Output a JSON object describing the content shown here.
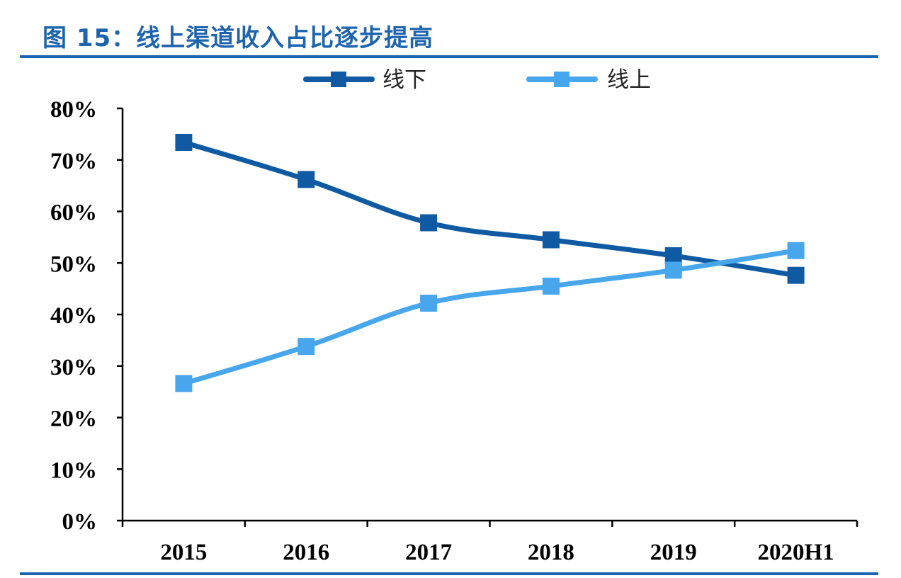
{
  "figure": {
    "title": "图 15：线上渠道收入占比逐步提高"
  },
  "colors": {
    "title": "#1d63ad",
    "rule": "#1d63ad",
    "axis": "#000000"
  },
  "chart_data": {
    "type": "line",
    "title": "",
    "xlabel": "",
    "ylabel": "",
    "categories": [
      "2015",
      "2016",
      "2017",
      "2018",
      "2019",
      "2020H1"
    ],
    "ylim": [
      0,
      80
    ],
    "yticks": [
      0,
      10,
      20,
      30,
      40,
      50,
      60,
      70,
      80
    ],
    "ytick_labels": [
      "0%",
      "10%",
      "20%",
      "30%",
      "40%",
      "50%",
      "60%",
      "70%",
      "80%"
    ],
    "y_unit": "%",
    "grid": false,
    "legend_position": "top",
    "marker": "square",
    "series": [
      {
        "name": "线下",
        "color": "#0f5aa3",
        "values": [
          73.4,
          66.2,
          57.8,
          54.5,
          51.4,
          47.6
        ]
      },
      {
        "name": "线上",
        "color": "#47a6ec",
        "values": [
          26.6,
          33.8,
          42.2,
          45.5,
          48.6,
          52.4
        ]
      }
    ]
  }
}
